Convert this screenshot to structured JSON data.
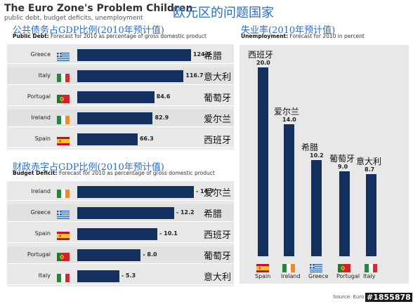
{
  "header": {
    "title_en": "The Euro Zone's Problem Children",
    "subtitle_en": "public debt, budget deficits, unemployment",
    "title_cn": "欧元区的问题国家"
  },
  "debt": {
    "heading_cn": "公共债务占GDP比例(2010年预计值)",
    "sub_bold": "Public Debt:",
    "sub_text": " Forecast for 2010 as percentage of gross domestic product"
  },
  "deficit": {
    "heading_cn": "财政赤字占GDP比例(2010年预计值)",
    "sub_bold": "Budget Deficit:",
    "sub_text": " Forecast for 2010 as percentage of gross domestic product"
  },
  "unemployment": {
    "heading_cn": "失业率(2010年预计值)",
    "sub_bold": "Unemployment:",
    "sub_text": " Forecast for 2010 in percent"
  },
  "footer": {
    "source": "Source: Euro",
    "stamp": "#1855878"
  },
  "colors": {
    "bar": "#13305f",
    "accent": "#2b6cc4",
    "panel": "#e8e8e8"
  },
  "chart_data": [
    {
      "type": "bar",
      "orientation": "horizontal",
      "categories": [
        "Greece",
        "Italy",
        "Portugal",
        "Ireland",
        "Spain"
      ],
      "categories_cn": [
        "希腊",
        "意大利",
        "葡萄牙",
        "爱尔兰",
        "西班牙"
      ],
      "values": [
        124.9,
        116.7,
        84.6,
        82.9,
        66.3
      ],
      "value_labels": [
        "124.9",
        "116.7",
        "84.6",
        "82.9",
        "66.3"
      ],
      "flags": [
        "greece-flag",
        "italy-flag",
        "portugal-flag",
        "ireland-flag",
        "spain-flag"
      ],
      "xlim": [
        0,
        135
      ],
      "grid": false
    },
    {
      "type": "bar",
      "orientation": "horizontal",
      "categories": [
        "Ireland",
        "Greece",
        "Spain",
        "Portugal",
        "Italy"
      ],
      "categories_cn": [
        "爱尔兰",
        "希腊",
        "西班牙",
        "葡萄牙",
        "意大利"
      ],
      "values": [
        -14.7,
        -12.2,
        -10.1,
        -8.0,
        -5.3
      ],
      "value_labels": [
        "- 14.7",
        "- 12.2",
        "- 10.1",
        "- 8.0",
        "- 5.3"
      ],
      "flags": [
        "ireland-flag",
        "greece-flag",
        "spain-flag",
        "portugal-flag",
        "italy-flag"
      ],
      "xlim": [
        0,
        15.5
      ],
      "grid": false
    },
    {
      "type": "bar",
      "orientation": "vertical",
      "categories": [
        "Spain",
        "Ireland",
        "Greece",
        "Portugal",
        "Italy"
      ],
      "categories_cn": [
        "西班牙",
        "爱尔兰",
        "希腊",
        "葡萄牙",
        "意大利"
      ],
      "values": [
        20.0,
        14.0,
        10.2,
        9.0,
        8.7
      ],
      "value_labels": [
        "20.0",
        "14.0",
        "10.2",
        "9.0",
        "8.7"
      ],
      "flags": [
        "spain-flag",
        "ireland-flag",
        "greece-flag",
        "portugal-flag",
        "italy-flag"
      ],
      "ylim": [
        0,
        21
      ],
      "grid": false
    }
  ]
}
